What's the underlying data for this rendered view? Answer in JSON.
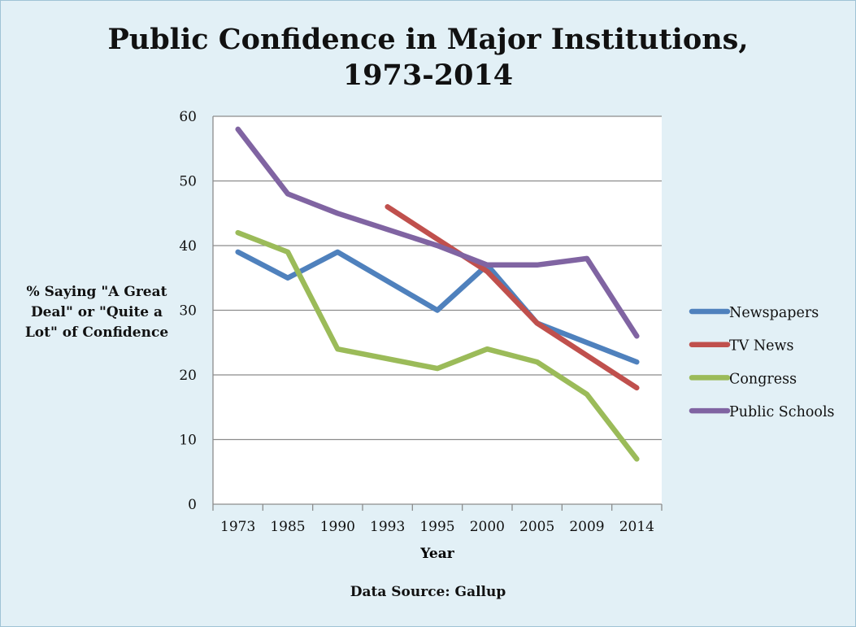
{
  "chart_data": {
    "type": "line",
    "title_lines": [
      "Public Confidence in Major Institutions,",
      "1973-2014"
    ],
    "xlabel": "Year",
    "ylabel_lines": [
      "% Saying \"A Great",
      "Deal\" or \"Quite a",
      "Lot\" of Confidence"
    ],
    "source": "Data Source:  Gallup",
    "categories": [
      "1973",
      "1985",
      "1990",
      "1993",
      "1995",
      "2000",
      "2005",
      "2009",
      "2014"
    ],
    "ylim": [
      0,
      60
    ],
    "yticks": [
      "0",
      "10",
      "20",
      "30",
      "40",
      "50",
      "60"
    ],
    "grid": true,
    "legend_position": "right",
    "series": [
      {
        "name": "Newspapers",
        "color": "#4f81bd",
        "values": [
          39,
          35,
          39,
          null,
          30,
          37,
          28,
          null,
          22
        ]
      },
      {
        "name": "TV News",
        "color": "#c0504d",
        "values": [
          null,
          null,
          null,
          46,
          null,
          36,
          28,
          null,
          18
        ]
      },
      {
        "name": "Congress",
        "color": "#9bbb59",
        "values": [
          42,
          39,
          24,
          null,
          21,
          24,
          22,
          17,
          7
        ]
      },
      {
        "name": "Public Schools",
        "color": "#8064a2",
        "values": [
          58,
          48,
          45,
          null,
          40,
          37,
          37,
          38,
          26
        ]
      }
    ]
  }
}
